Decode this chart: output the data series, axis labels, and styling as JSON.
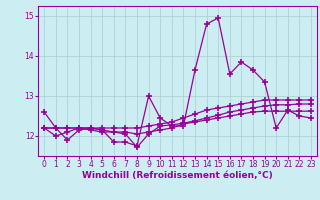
{
  "xlabel": "Windchill (Refroidissement éolien,°C)",
  "xlim": [
    -0.5,
    23.5
  ],
  "ylim": [
    11.5,
    15.25
  ],
  "yticks": [
    12,
    13,
    14,
    15
  ],
  "xticks": [
    0,
    1,
    2,
    3,
    4,
    5,
    6,
    7,
    8,
    9,
    10,
    11,
    12,
    13,
    14,
    15,
    16,
    17,
    18,
    19,
    20,
    21,
    22,
    23
  ],
  "bg_color": "#cceef2",
  "grid_color": "#aacccc",
  "line_color": "#990099",
  "series": [
    [
      12.6,
      12.2,
      11.9,
      12.15,
      12.2,
      12.15,
      11.85,
      11.85,
      11.75,
      13.0,
      12.45,
      12.25,
      12.25,
      13.65,
      14.8,
      14.95,
      13.55,
      13.85,
      13.65,
      13.35,
      12.2,
      12.65,
      12.5,
      12.45
    ],
    [
      12.2,
      12.2,
      12.2,
      12.2,
      12.2,
      12.2,
      12.2,
      12.2,
      12.2,
      12.25,
      12.3,
      12.35,
      12.45,
      12.55,
      12.65,
      12.7,
      12.75,
      12.8,
      12.85,
      12.9,
      12.9,
      12.9,
      12.9,
      12.9
    ],
    [
      12.2,
      12.2,
      12.2,
      12.2,
      12.15,
      12.1,
      12.1,
      12.1,
      12.05,
      12.1,
      12.15,
      12.2,
      12.3,
      12.35,
      12.4,
      12.45,
      12.5,
      12.55,
      12.6,
      12.62,
      12.62,
      12.62,
      12.62,
      12.62
    ],
    [
      12.2,
      12.0,
      12.1,
      12.2,
      12.2,
      12.15,
      12.1,
      12.05,
      11.72,
      12.05,
      12.25,
      12.28,
      12.32,
      12.38,
      12.45,
      12.52,
      12.6,
      12.65,
      12.7,
      12.75,
      12.78,
      12.78,
      12.8,
      12.8
    ]
  ],
  "marker": "+",
  "markersize": 4,
  "linewidth": 0.9,
  "xlabel_fontsize": 6.5,
  "tick_fontsize": 5.5
}
